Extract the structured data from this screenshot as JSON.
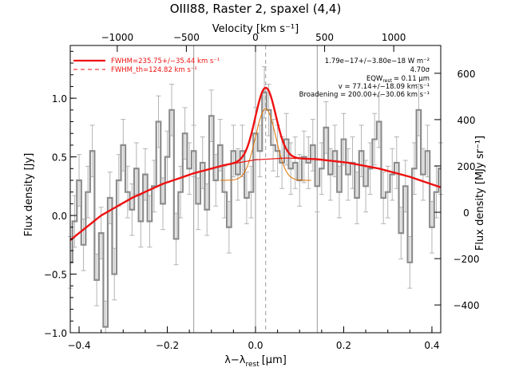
{
  "chart_data": {
    "type": "line",
    "title": "OIII88, Raster 2, spaxel (4,4)",
    "xlabel_main": "λ−λ",
    "xlabel_sub": "rest",
    "xlabel_unit": "[μm]",
    "ylabel_left": "Flux density [Jy]",
    "ylabel_right": "Flux density [MJy sr⁻¹]",
    "top_axis_label": "Velocity [km s⁻¹]",
    "xlim": [
      -0.42,
      0.42
    ],
    "ylim": [
      -1.0,
      1.45
    ],
    "right_ylim": [
      -520,
      720
    ],
    "top_xlim": [
      -1340,
      1340
    ],
    "x_ticks": [
      -0.4,
      -0.2,
      0.0,
      0.2,
      0.4
    ],
    "x_tick_labels": [
      "−0.4",
      "−0.2",
      "0.0",
      "0.2",
      "0.4"
    ],
    "y_ticks": [
      -1.0,
      -0.5,
      0.0,
      0.5,
      1.0
    ],
    "y_tick_labels": [
      "−1.0",
      "−0.5",
      "0.0",
      "0.5",
      "1.0"
    ],
    "right_ticks": [
      -400,
      -200,
      0,
      200,
      400,
      600
    ],
    "right_tick_labels": [
      "−400",
      "−200",
      "0",
      "200",
      "400",
      "600"
    ],
    "top_ticks": [
      -1000,
      -500,
      0,
      500,
      1000
    ],
    "top_tick_labels": [
      "−1000",
      "−500",
      "0",
      "500",
      "1000"
    ],
    "vertical_lines": [
      -0.14,
      0.0,
      0.14
    ],
    "rest_line": 0.023,
    "legend": [
      {
        "label": "FWHM=235.75+/−35.44 km s⁻¹",
        "style": "solid",
        "color": "#ee1111"
      },
      {
        "label": "FWHM_th=124.82 km s⁻¹",
        "style": "dashed",
        "color": "#ee1111"
      }
    ],
    "annotations": [
      "1.79e−17+/−3.80e−18 W m⁻²",
      "4.70σ",
      "EQW",
      "rest",
      "= 0.11 μm",
      "v = 77.14+/−18.09 km s⁻¹",
      "Broadening = 200.00+/−30.06 km s⁻¹"
    ],
    "colors": {
      "spectrum": "#8c8c8c",
      "error": "#b4b4b4",
      "fit": "#ee1111",
      "components": "#e07000",
      "vlines": "#999999"
    },
    "series": [
      {
        "name": "spectrum",
        "step": true,
        "x": [
          -0.42,
          -0.41,
          -0.4,
          -0.39,
          -0.38,
          -0.37,
          -0.36,
          -0.35,
          -0.34,
          -0.33,
          -0.32,
          -0.31,
          -0.3,
          -0.29,
          -0.28,
          -0.27,
          -0.26,
          -0.25,
          -0.24,
          -0.23,
          -0.22,
          -0.21,
          -0.2,
          -0.19,
          -0.18,
          -0.17,
          -0.16,
          -0.15,
          -0.14,
          -0.13,
          -0.12,
          -0.11,
          -0.1,
          -0.09,
          -0.08,
          -0.07,
          -0.06,
          -0.05,
          -0.04,
          -0.03,
          -0.02,
          -0.01,
          0.0,
          0.01,
          0.02,
          0.03,
          0.04,
          0.05,
          0.06,
          0.07,
          0.08,
          0.09,
          0.1,
          0.11,
          0.12,
          0.13,
          0.14,
          0.15,
          0.16,
          0.17,
          0.18,
          0.19,
          0.2,
          0.21,
          0.22,
          0.23,
          0.24,
          0.25,
          0.26,
          0.27,
          0.28,
          0.29,
          0.3,
          0.31,
          0.32,
          0.33,
          0.34,
          0.35,
          0.36,
          0.37,
          0.38,
          0.39,
          0.4,
          0.41,
          0.42
        ],
        "y": [
          -0.4,
          -0.05,
          0.3,
          -0.25,
          0.2,
          0.55,
          -0.55,
          -0.15,
          -0.95,
          0.15,
          -0.5,
          0.3,
          0.6,
          0.2,
          0.05,
          0.4,
          -0.05,
          0.35,
          -0.05,
          0.25,
          0.8,
          0.1,
          0.5,
          0.9,
          -0.2,
          0.2,
          0.7,
          0.4,
          0.55,
          0.1,
          0.45,
          0.05,
          0.85,
          0.3,
          0.6,
          0.2,
          -0.1,
          0.55,
          0.35,
          0.55,
          0.15,
          0.2,
          0.7,
          0.55,
          1.05,
          0.9,
          0.6,
          0.55,
          0.45,
          0.65,
          0.4,
          0.45,
          0.3,
          0.5,
          0.45,
          0.6,
          0.25,
          0.4,
          0.75,
          0.35,
          0.55,
          0.2,
          0.65,
          0.35,
          0.45,
          0.15,
          0.55,
          0.25,
          0.4,
          0.65,
          0.8,
          0.15,
          0.2,
          0.35,
          0.45,
          -0.15,
          0.25,
          -0.4,
          0.4,
          0.9,
          0.35,
          0.55,
          -0.1,
          0.2,
          0.4
        ]
      },
      {
        "name": "error",
        "dy": 0.22
      },
      {
        "name": "continuum",
        "x": [
          -0.42,
          -0.35,
          -0.28,
          -0.21,
          -0.14,
          -0.07,
          0.0,
          0.07,
          0.14,
          0.21,
          0.28,
          0.35,
          0.42
        ],
        "y": [
          -0.21,
          0.0,
          0.15,
          0.27,
          0.36,
          0.43,
          0.475,
          0.49,
          0.48,
          0.45,
          0.4,
          0.33,
          0.24
        ]
      },
      {
        "name": "fit_gaussian",
        "center": 0.023,
        "amplitude": 0.61,
        "sigma": 0.023
      }
    ]
  }
}
